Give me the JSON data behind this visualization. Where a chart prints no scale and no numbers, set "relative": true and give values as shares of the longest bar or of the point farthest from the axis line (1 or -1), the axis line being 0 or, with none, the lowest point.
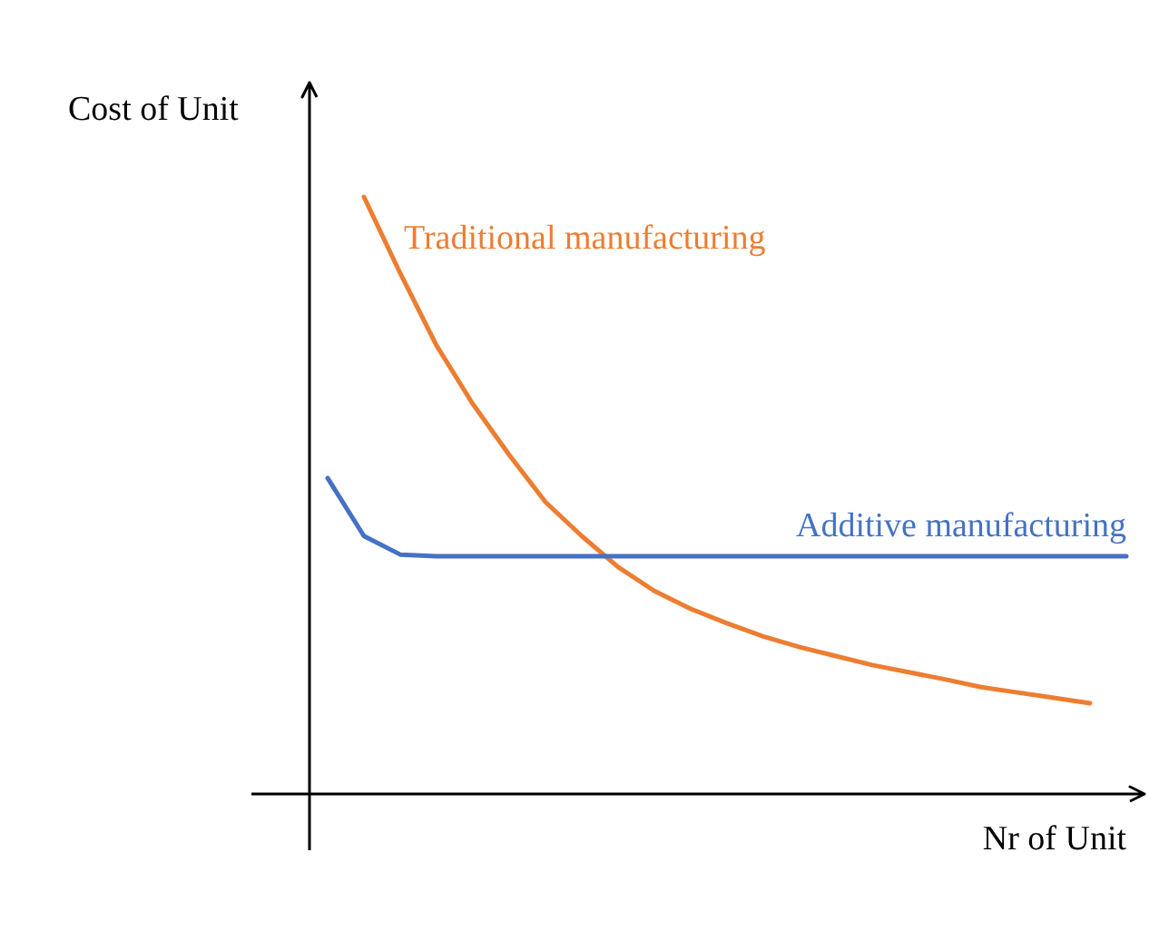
{
  "chart_data": {
    "type": "line",
    "relative": true,
    "xlabel": "Nr of Unit",
    "ylabel": "Cost of Unit",
    "legend": false,
    "grid": false,
    "marker": "none",
    "line_style": "solid",
    "categories": [
      null,
      null,
      null,
      null,
      null,
      null,
      null,
      null,
      null,
      null,
      null,
      null,
      null,
      null,
      null,
      null,
      null,
      null,
      null,
      null,
      null,
      null,
      null
    ],
    "series": [
      {
        "name": "Traditional manufacturing",
        "color": "#ed7d31",
        "values": [
          null,
          1,
          0.872,
          0.751,
          0.653,
          0.568,
          0.489,
          0.432,
          0.38,
          0.34,
          0.31,
          0.286,
          0.264,
          0.246,
          0.231,
          0.216,
          0.204,
          0.192,
          0.179,
          0.17,
          0.161,
          0.152,
          null
        ]
      },
      {
        "name": "Additive manufacturing",
        "color": "#4472c4",
        "values": [
          0.529,
          0.432,
          0.401,
          0.398,
          0.398,
          0.398,
          0.398,
          0.398,
          0.398,
          0.398,
          0.398,
          0.398,
          0.398,
          0.398,
          0.398,
          0.398,
          0.398,
          0.398,
          0.398,
          0.398,
          0.398,
          0.398,
          0.398
        ]
      }
    ]
  }
}
